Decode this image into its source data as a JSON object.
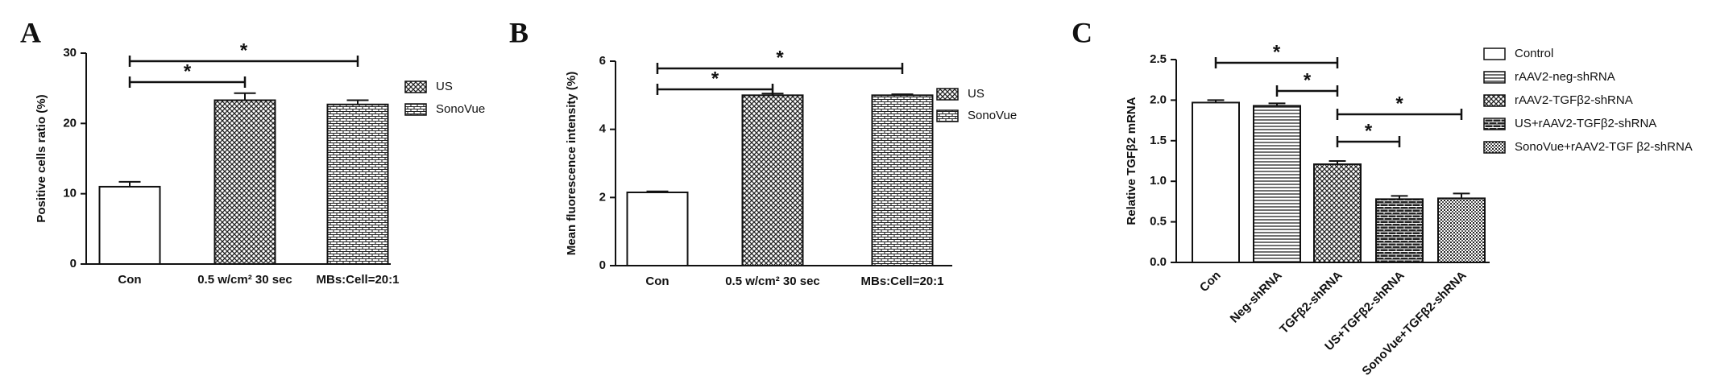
{
  "chart_data": [
    {
      "type": "bar",
      "panel": "A",
      "ylabel": "Positive cells ratio (%)",
      "categories": [
        "Con",
        "0.5 w/cm² 30 sec",
        "MBs:Cell=20:1"
      ],
      "values": [
        11,
        23.3,
        22.7
      ],
      "errors": [
        0.7,
        1.0,
        0.6
      ],
      "ylim": [
        0,
        30
      ],
      "yticks": [
        0,
        10,
        20,
        30
      ],
      "legend": [
        "US",
        "SonoVue"
      ],
      "annotations": [
        "*",
        "*"
      ]
    },
    {
      "type": "bar",
      "panel": "B",
      "ylabel": "Mean fluorescence intensity (%)",
      "categories": [
        "Con",
        "0.5 w/cm² 30 sec",
        "MBs:Cell=20:1"
      ],
      "values": [
        2.15,
        5.0,
        5.0
      ],
      "errors": [
        0.03,
        0.05,
        0.03
      ],
      "ylim": [
        0,
        6
      ],
      "yticks": [
        0,
        2,
        4,
        6
      ],
      "legend": [
        "US",
        "SonoVue"
      ],
      "annotations": [
        "*",
        "*"
      ]
    },
    {
      "type": "bar",
      "panel": "C",
      "ylabel": "Relative TGFβ2 mRNA",
      "categories": [
        "Con",
        "Neg-shRNA",
        "TGFβ2-shRNA",
        "US+TGFβ2-shRNA",
        "SonoVue+TGFβ2-shRNA"
      ],
      "values": [
        1.97,
        1.93,
        1.21,
        0.78,
        0.79
      ],
      "errors": [
        0.03,
        0.03,
        0.04,
        0.04,
        0.06
      ],
      "ylim": [
        0,
        2.5
      ],
      "yticks": [
        {
          "value": 0,
          "label": "0.0"
        },
        0.5,
        {
          "value": 1,
          "label": "1.0"
        },
        1.5,
        {
          "value": 2,
          "label": "2.0"
        },
        2.5
      ],
      "legend": [
        "Control",
        "rAAV2-neg-shRNA",
        "rAAV2-TGFβ2-shRNA",
        "US+rAAV2-TGFβ2-shRNA",
        "SonoVue+rAAV2-TGF β2-shRNA"
      ],
      "annotations": [
        "*",
        "*",
        "*",
        "*"
      ]
    }
  ]
}
